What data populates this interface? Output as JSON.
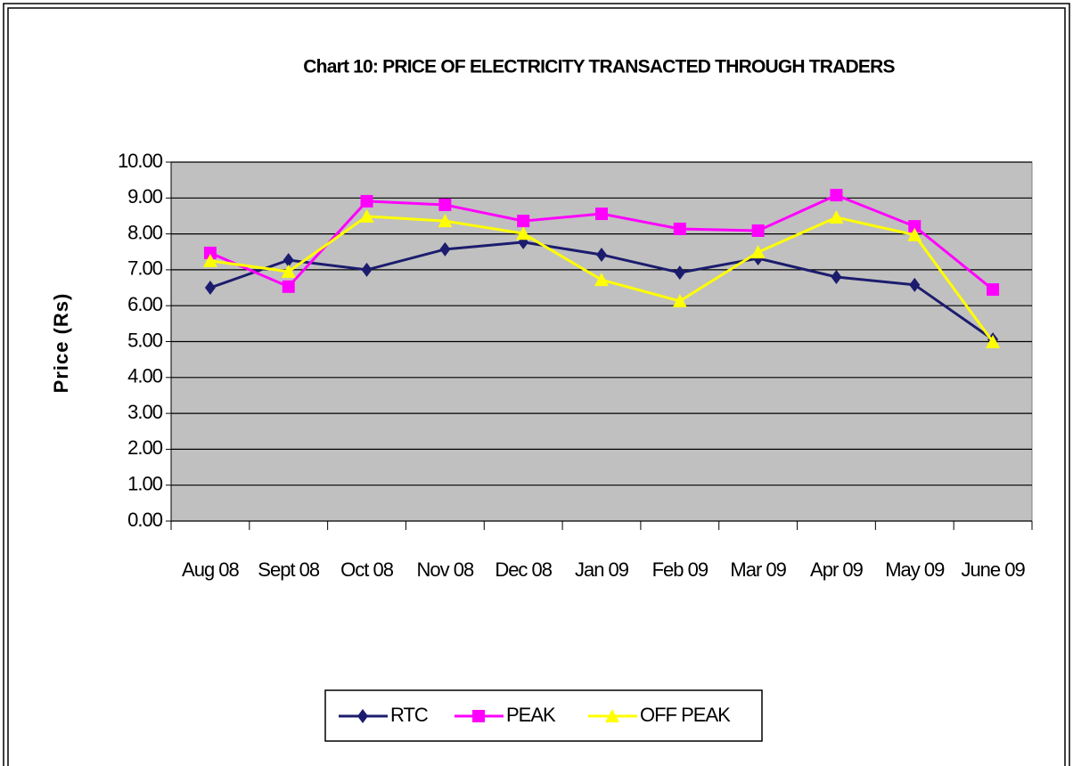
{
  "chart_data": {
    "type": "line",
    "title": "Chart 10: PRICE OF ELECTRICITY TRANSACTED THROUGH TRADERS",
    "y_label": "Price (Rs)",
    "categories": [
      "Aug 08",
      "Sept 08",
      "Oct 08",
      "Nov 08",
      "Dec 08",
      "Jan 09",
      "Feb 09",
      "Mar 09",
      "Apr 09",
      "May 09",
      "June 09"
    ],
    "series": [
      {
        "name": "RTC",
        "color": "#1c1c6e",
        "marker": "diamond",
        "values": [
          6.5,
          7.27,
          7.0,
          7.57,
          7.77,
          7.42,
          6.92,
          7.32,
          6.8,
          6.58,
          5.06
        ]
      },
      {
        "name": "PEAK",
        "color": "#ff00ff",
        "marker": "square",
        "values": [
          7.47,
          6.53,
          8.91,
          8.81,
          8.36,
          8.56,
          8.14,
          8.09,
          9.08,
          8.21,
          6.45
        ]
      },
      {
        "name": "OFF PEAK",
        "color": "#ffff00",
        "marker": "triangle",
        "values": [
          7.25,
          6.95,
          8.49,
          8.36,
          8.01,
          6.72,
          6.13,
          7.49,
          8.46,
          7.97,
          4.99
        ]
      }
    ],
    "ylim": [
      0,
      10
    ],
    "yticks": [
      {
        "value": 0,
        "label": "0.00"
      },
      {
        "value": 1,
        "label": "1.00"
      },
      {
        "value": 2,
        "label": "2.00"
      },
      {
        "value": 3,
        "label": "3.00"
      },
      {
        "value": 4,
        "label": "4.00"
      },
      {
        "value": 5,
        "label": "5.00"
      },
      {
        "value": 6,
        "label": "6.00"
      },
      {
        "value": 7,
        "label": "7.00"
      },
      {
        "value": 8,
        "label": "8.00"
      },
      {
        "value": 9,
        "label": "9.00"
      },
      {
        "value": 10,
        "label": "10.00"
      }
    ],
    "grid": true,
    "plot_background": "#c0c0c0",
    "legend": "bottom"
  }
}
